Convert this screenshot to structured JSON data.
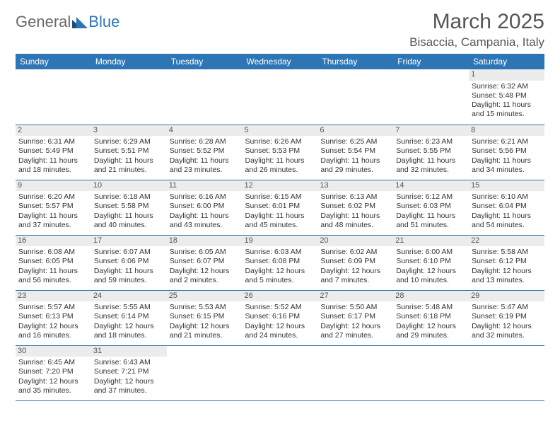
{
  "logo": {
    "text1": "General",
    "text2": "Blue"
  },
  "title": "March 2025",
  "location": "Bisaccia, Campania, Italy",
  "days": [
    "Sunday",
    "Monday",
    "Tuesday",
    "Wednesday",
    "Thursday",
    "Friday",
    "Saturday"
  ],
  "colors": {
    "accent": "#2E75B6",
    "dayBg": "#ececec"
  },
  "weeks": [
    [
      null,
      null,
      null,
      null,
      null,
      null,
      {
        "n": "1",
        "sr": "Sunrise: 6:32 AM",
        "ss": "Sunset: 5:48 PM",
        "dl": "Daylight: 11 hours and 15 minutes."
      }
    ],
    [
      {
        "n": "2",
        "sr": "Sunrise: 6:31 AM",
        "ss": "Sunset: 5:49 PM",
        "dl": "Daylight: 11 hours and 18 minutes."
      },
      {
        "n": "3",
        "sr": "Sunrise: 6:29 AM",
        "ss": "Sunset: 5:51 PM",
        "dl": "Daylight: 11 hours and 21 minutes."
      },
      {
        "n": "4",
        "sr": "Sunrise: 6:28 AM",
        "ss": "Sunset: 5:52 PM",
        "dl": "Daylight: 11 hours and 23 minutes."
      },
      {
        "n": "5",
        "sr": "Sunrise: 6:26 AM",
        "ss": "Sunset: 5:53 PM",
        "dl": "Daylight: 11 hours and 26 minutes."
      },
      {
        "n": "6",
        "sr": "Sunrise: 6:25 AM",
        "ss": "Sunset: 5:54 PM",
        "dl": "Daylight: 11 hours and 29 minutes."
      },
      {
        "n": "7",
        "sr": "Sunrise: 6:23 AM",
        "ss": "Sunset: 5:55 PM",
        "dl": "Daylight: 11 hours and 32 minutes."
      },
      {
        "n": "8",
        "sr": "Sunrise: 6:21 AM",
        "ss": "Sunset: 5:56 PM",
        "dl": "Daylight: 11 hours and 34 minutes."
      }
    ],
    [
      {
        "n": "9",
        "sr": "Sunrise: 6:20 AM",
        "ss": "Sunset: 5:57 PM",
        "dl": "Daylight: 11 hours and 37 minutes."
      },
      {
        "n": "10",
        "sr": "Sunrise: 6:18 AM",
        "ss": "Sunset: 5:58 PM",
        "dl": "Daylight: 11 hours and 40 minutes."
      },
      {
        "n": "11",
        "sr": "Sunrise: 6:16 AM",
        "ss": "Sunset: 6:00 PM",
        "dl": "Daylight: 11 hours and 43 minutes."
      },
      {
        "n": "12",
        "sr": "Sunrise: 6:15 AM",
        "ss": "Sunset: 6:01 PM",
        "dl": "Daylight: 11 hours and 45 minutes."
      },
      {
        "n": "13",
        "sr": "Sunrise: 6:13 AM",
        "ss": "Sunset: 6:02 PM",
        "dl": "Daylight: 11 hours and 48 minutes."
      },
      {
        "n": "14",
        "sr": "Sunrise: 6:12 AM",
        "ss": "Sunset: 6:03 PM",
        "dl": "Daylight: 11 hours and 51 minutes."
      },
      {
        "n": "15",
        "sr": "Sunrise: 6:10 AM",
        "ss": "Sunset: 6:04 PM",
        "dl": "Daylight: 11 hours and 54 minutes."
      }
    ],
    [
      {
        "n": "16",
        "sr": "Sunrise: 6:08 AM",
        "ss": "Sunset: 6:05 PM",
        "dl": "Daylight: 11 hours and 56 minutes."
      },
      {
        "n": "17",
        "sr": "Sunrise: 6:07 AM",
        "ss": "Sunset: 6:06 PM",
        "dl": "Daylight: 11 hours and 59 minutes."
      },
      {
        "n": "18",
        "sr": "Sunrise: 6:05 AM",
        "ss": "Sunset: 6:07 PM",
        "dl": "Daylight: 12 hours and 2 minutes."
      },
      {
        "n": "19",
        "sr": "Sunrise: 6:03 AM",
        "ss": "Sunset: 6:08 PM",
        "dl": "Daylight: 12 hours and 5 minutes."
      },
      {
        "n": "20",
        "sr": "Sunrise: 6:02 AM",
        "ss": "Sunset: 6:09 PM",
        "dl": "Daylight: 12 hours and 7 minutes."
      },
      {
        "n": "21",
        "sr": "Sunrise: 6:00 AM",
        "ss": "Sunset: 6:10 PM",
        "dl": "Daylight: 12 hours and 10 minutes."
      },
      {
        "n": "22",
        "sr": "Sunrise: 5:58 AM",
        "ss": "Sunset: 6:12 PM",
        "dl": "Daylight: 12 hours and 13 minutes."
      }
    ],
    [
      {
        "n": "23",
        "sr": "Sunrise: 5:57 AM",
        "ss": "Sunset: 6:13 PM",
        "dl": "Daylight: 12 hours and 16 minutes."
      },
      {
        "n": "24",
        "sr": "Sunrise: 5:55 AM",
        "ss": "Sunset: 6:14 PM",
        "dl": "Daylight: 12 hours and 18 minutes."
      },
      {
        "n": "25",
        "sr": "Sunrise: 5:53 AM",
        "ss": "Sunset: 6:15 PM",
        "dl": "Daylight: 12 hours and 21 minutes."
      },
      {
        "n": "26",
        "sr": "Sunrise: 5:52 AM",
        "ss": "Sunset: 6:16 PM",
        "dl": "Daylight: 12 hours and 24 minutes."
      },
      {
        "n": "27",
        "sr": "Sunrise: 5:50 AM",
        "ss": "Sunset: 6:17 PM",
        "dl": "Daylight: 12 hours and 27 minutes."
      },
      {
        "n": "28",
        "sr": "Sunrise: 5:48 AM",
        "ss": "Sunset: 6:18 PM",
        "dl": "Daylight: 12 hours and 29 minutes."
      },
      {
        "n": "29",
        "sr": "Sunrise: 5:47 AM",
        "ss": "Sunset: 6:19 PM",
        "dl": "Daylight: 12 hours and 32 minutes."
      }
    ],
    [
      {
        "n": "30",
        "sr": "Sunrise: 6:45 AM",
        "ss": "Sunset: 7:20 PM",
        "dl": "Daylight: 12 hours and 35 minutes."
      },
      {
        "n": "31",
        "sr": "Sunrise: 6:43 AM",
        "ss": "Sunset: 7:21 PM",
        "dl": "Daylight: 12 hours and 37 minutes."
      },
      null,
      null,
      null,
      null,
      null
    ]
  ]
}
